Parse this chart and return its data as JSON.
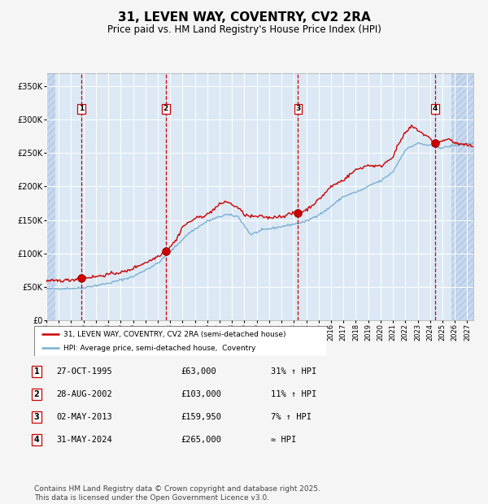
{
  "title": "31, LEVEN WAY, COVENTRY, CV2 2RA",
  "subtitle": "Price paid vs. HM Land Registry's House Price Index (HPI)",
  "title_fontsize": 11,
  "subtitle_fontsize": 8.5,
  "background_color": "#dce9f5",
  "fig_facecolor": "#f5f5f5",
  "grid_color": "#ffffff",
  "ylabel_ticks": [
    "£0",
    "£50K",
    "£100K",
    "£150K",
    "£200K",
    "£250K",
    "£300K",
    "£350K"
  ],
  "ylabel_values": [
    0,
    50000,
    100000,
    150000,
    200000,
    250000,
    300000,
    350000
  ],
  "ylim": [
    0,
    370000
  ],
  "xlim_start": 1993.0,
  "xlim_end": 2027.5,
  "hatch_left_end": 1993.75,
  "hatch_right_start": 2025.75,
  "sale_dates": [
    1995.82,
    2002.65,
    2013.33,
    2024.41
  ],
  "sale_prices": [
    63000,
    103000,
    159950,
    265000
  ],
  "sale_labels": [
    "1",
    "2",
    "3",
    "4"
  ],
  "vline_color": "#cc0000",
  "marker_color": "#cc0000",
  "marker_size": 7,
  "red_line_color": "#cc0000",
  "blue_line_color": "#7bafd4",
  "legend_entries": [
    "31, LEVEN WAY, COVENTRY, CV2 2RA (semi-detached house)",
    "HPI: Average price, semi-detached house,  Coventry"
  ],
  "table_rows": [
    {
      "label": "1",
      "date": "27-OCT-1995",
      "price": "£63,000",
      "hpi": "31% ↑ HPI"
    },
    {
      "label": "2",
      "date": "28-AUG-2002",
      "price": "£103,000",
      "hpi": "11% ↑ HPI"
    },
    {
      "label": "3",
      "date": "02-MAY-2013",
      "price": "£159,950",
      "hpi": "7% ↑ HPI"
    },
    {
      "label": "4",
      "date": "31-MAY-2024",
      "price": "£265,000",
      "hpi": "≈ HPI"
    }
  ],
  "footer": "Contains HM Land Registry data © Crown copyright and database right 2025.\nThis data is licensed under the Open Government Licence v3.0.",
  "footer_fontsize": 6.5
}
